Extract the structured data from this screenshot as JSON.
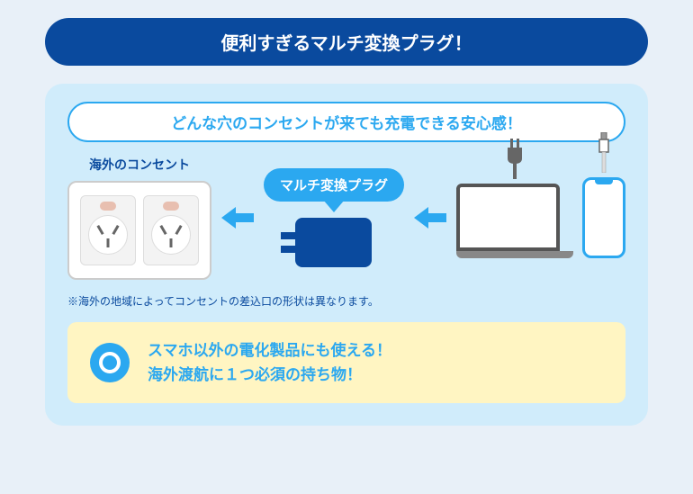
{
  "colors": {
    "page_bg": "#e8f0f8",
    "title_bg": "#0a4a9e",
    "title_text": "#ffffff",
    "content_bg": "#d0ecfb",
    "subtitle_bg": "#ffffff",
    "subtitle_border": "#2ba8f0",
    "subtitle_text": "#2ba8f0",
    "outlet_label": "#0a4a9e",
    "outlet_plate_bg": "#ffffff",
    "outlet_plate_border": "#cccccc",
    "outlet_socket_bg": "#f3f3f3",
    "outlet_socket_border": "#dddddd",
    "outlet_switch_bg": "#e8bfb0",
    "outlet_face_bg": "#ffffff",
    "outlet_face_border": "#dddddd",
    "arrow": "#2ba8f0",
    "adapter_label_bg": "#2ba8f0",
    "adapter_label_text": "#ffffff",
    "adapter_body": "#0a4a9e",
    "laptop_border": "#555555",
    "laptop_screen": "#ffffff",
    "laptop_base": "#888888",
    "phone_border": "#2ba8f0",
    "phone_screen": "#ffffff",
    "plug_fill": "#666666",
    "note_text": "#0a4a9e",
    "callout_bg": "#fff5c2",
    "callout_text": "#2ba8f0",
    "circle_bg": "#2ba8f0",
    "circle_inner_border": "#ffffff"
  },
  "title": "便利すぎるマルチ変換プラグ！",
  "subtitle": "どんな穴のコンセントが来ても充電できる安心感！",
  "outlet_label": "海外のコンセント",
  "adapter_label": "マルチ変換プラグ",
  "note": "※海外の地域によってコンセントの差込口の形状は異なります。",
  "callout_line1": "スマホ以外の電化製品にも使える！",
  "callout_line2": "海外渡航に１つ必須の持ち物！",
  "typography": {
    "title_fontsize": 20,
    "subtitle_fontsize": 17,
    "label_fontsize": 14,
    "adapter_label_fontsize": 15,
    "note_fontsize": 12,
    "callout_fontsize": 17
  }
}
